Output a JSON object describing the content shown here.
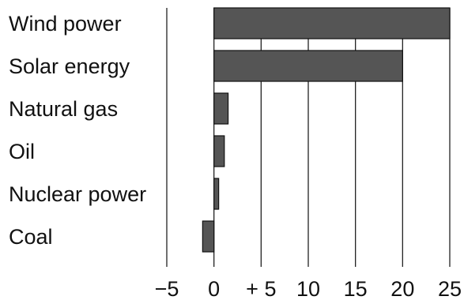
{
  "chart_data": {
    "type": "bar",
    "orientation": "horizontal",
    "categories": [
      "Wind power",
      "Solar energy",
      "Natural gas",
      "Oil",
      "Nuclear power",
      "Coal"
    ],
    "values": [
      25,
      20,
      1.5,
      1.1,
      0.5,
      -1.2
    ],
    "xlim": [
      -5,
      25
    ],
    "x_ticks": [
      -5,
      0,
      5,
      10,
      15,
      20,
      25
    ],
    "x_tick_labels": [
      "−5",
      "0",
      "+ 5",
      "10",
      "15",
      "20",
      "25"
    ],
    "grid": "vertical",
    "bar_color": "#555555"
  }
}
